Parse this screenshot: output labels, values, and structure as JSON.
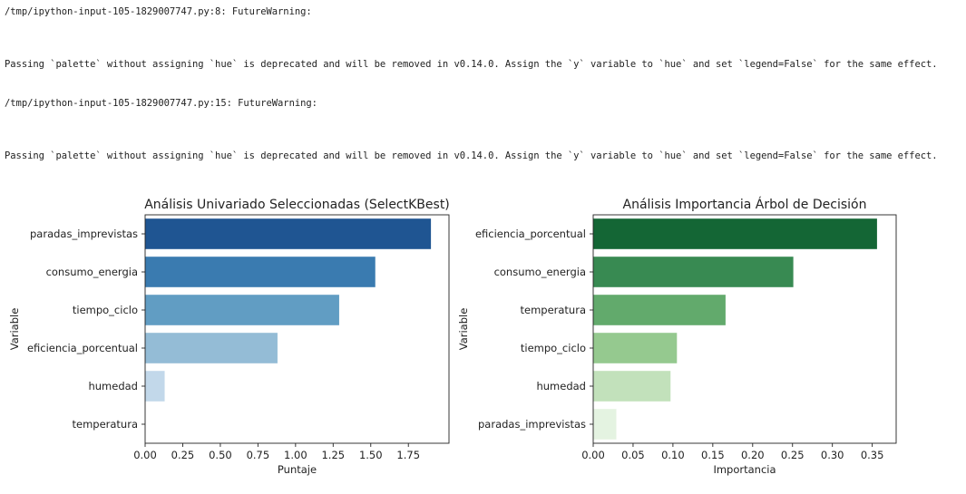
{
  "output_log": [
    "/tmp/ipython-input-105-1829007747.py:8: FutureWarning:",
    "Passing `palette` without assigning `hue` is deprecated and will be removed in v0.14.0. Assign the `y` variable to `hue` and set `legend=False` for the same effect.",
    "/tmp/ipython-input-105-1829007747.py:15: FutureWarning:",
    "Passing `palette` without assigning `hue` is deprecated and will be removed in v0.14.0. Assign the `y` variable to `hue` and set `legend=False` for the same effect."
  ],
  "chart_data": [
    {
      "type": "bar",
      "orientation": "horizontal",
      "title": "Análisis Univariado Seleccionadas (SelectKBest)",
      "xlabel": "Puntaje",
      "ylabel": "Variable",
      "categories": [
        "paradas_imprevistas",
        "consumo_energia",
        "tiempo_ciclo",
        "eficiencia_porcentual",
        "humedad",
        "temperatura"
      ],
      "values": [
        1.9,
        1.53,
        1.29,
        0.88,
        0.13,
        0.0
      ],
      "colors": [
        "#1f5592",
        "#3a7bb0",
        "#619dc3",
        "#94bcd6",
        "#c2d8ea",
        "#eef4fa"
      ],
      "xlim": [
        0,
        2.02
      ],
      "xticks": [
        "0.00",
        "0.25",
        "0.50",
        "0.75",
        "1.00",
        "1.25",
        "1.50",
        "1.75"
      ],
      "xtick_values": [
        0,
        0.25,
        0.5,
        0.75,
        1.0,
        1.25,
        1.5,
        1.75
      ],
      "grid": false
    },
    {
      "type": "bar",
      "orientation": "horizontal",
      "title": "Análisis Importancia Árbol de Decisión",
      "xlabel": "Importancia",
      "ylabel": "Variable",
      "categories": [
        "eficiencia_porcentual",
        "consumo_energia",
        "temperatura",
        "tiempo_ciclo",
        "humedad",
        "paradas_imprevistas"
      ],
      "values": [
        0.356,
        0.251,
        0.166,
        0.105,
        0.097,
        0.029
      ],
      "colors": [
        "#146635",
        "#388a52",
        "#62aa6c",
        "#95c98f",
        "#c2e1bb",
        "#e4f3e1"
      ],
      "xlim": [
        0,
        0.38
      ],
      "xticks": [
        "0.00",
        "0.05",
        "0.10",
        "0.15",
        "0.20",
        "0.25",
        "0.30",
        "0.35"
      ],
      "xtick_values": [
        0,
        0.05,
        0.1,
        0.15,
        0.2,
        0.25,
        0.3,
        0.35
      ],
      "grid": false
    }
  ]
}
